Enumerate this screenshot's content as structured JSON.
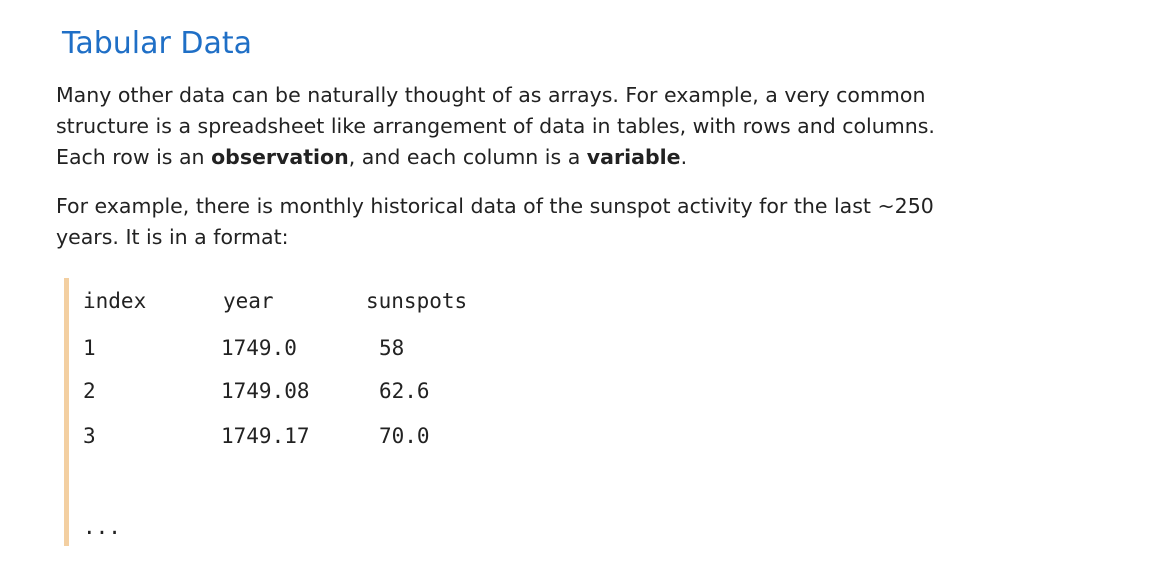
{
  "heading": "Tabular Data",
  "paragraph1": {
    "lines": [
      "Many other data can be naturally thought of as arrays. For example, a very common",
      "structure is a spreadsheet like arrangement of data in tables, with rows and columns."
    ],
    "line3_prefix": "Each row is an ",
    "line3_bold1": "observation",
    "line3_middle": ", and each column is a ",
    "line3_bold2": "variable",
    "line3_suffix": "."
  },
  "paragraph2": {
    "lines": [
      "For example, there is monthly historical data of the sunspot activity for the last ~250",
      "years. It is in a format:"
    ]
  },
  "table": {
    "headers": [
      "index",
      "year",
      "sunspots"
    ],
    "rows": [
      [
        "1",
        "1749.0",
        "58"
      ],
      [
        "2",
        "1749.08",
        "62.6"
      ],
      [
        "3",
        "1749.17",
        "70.0"
      ]
    ],
    "ellipsis": "..."
  },
  "colors": {
    "heading": "#1f6fc6",
    "code_border": "#f3cfa1"
  }
}
